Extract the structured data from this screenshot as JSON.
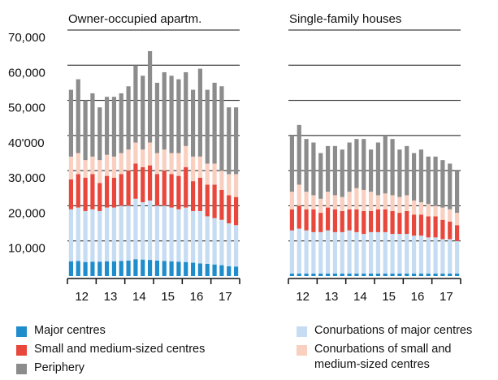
{
  "chart_data": [
    {
      "type": "stacked_bar",
      "title": "Owner-occupied apartm.",
      "categories": [
        null,
        null,
        null,
        null,
        null,
        null,
        null,
        null,
        null,
        null,
        null,
        null,
        null,
        null,
        null,
        null,
        null,
        null,
        null,
        null,
        null,
        null,
        null,
        null
      ],
      "year_labels": [
        "12",
        "13",
        "14",
        "15",
        "16",
        "17"
      ],
      "ylim": [
        0,
        70000
      ],
      "yticks": [
        {
          "value": 10000,
          "label": "10,000"
        },
        {
          "value": 20000,
          "label": "20,000"
        },
        {
          "value": 30000,
          "label": "30,000"
        },
        {
          "value": 40000,
          "label": "40'000"
        },
        {
          "value": 50000,
          "label": "50,000"
        },
        {
          "value": 60000,
          "label": "60,000"
        },
        {
          "value": 70000,
          "label": "70,000"
        }
      ],
      "grid": true,
      "series": [
        {
          "name": "Major centres",
          "color": "#1f8ccc",
          "values": [
            4200,
            4300,
            4000,
            4100,
            4100,
            4200,
            4200,
            4300,
            4400,
            4800,
            4700,
            4600,
            4400,
            4300,
            4200,
            4100,
            4000,
            3800,
            3600,
            3500,
            3300,
            3100,
            2800,
            2700
          ]
        },
        {
          "name": "Conurbations of major centres",
          "color": "#c5dcf2",
          "values": [
            14800,
            15200,
            14500,
            14900,
            14400,
            15300,
            15300,
            15700,
            15600,
            17200,
            16300,
            16900,
            15600,
            15700,
            15300,
            14900,
            15500,
            14700,
            14900,
            13500,
            13200,
            12900,
            12200,
            11800
          ]
        },
        {
          "name": "Small and medium-sized centres",
          "color": "#e8473c",
          "values": [
            8500,
            9500,
            9500,
            10000,
            8000,
            9000,
            8500,
            9000,
            10000,
            10000,
            10000,
            10000,
            9000,
            10000,
            9500,
            9500,
            11500,
            8500,
            9500,
            9000,
            9500,
            8500,
            8000,
            8000
          ]
        },
        {
          "name": "Conurbations of small and medium-sized centres",
          "color": "#f9cfc0",
          "values": [
            6500,
            6000,
            5000,
            5000,
            6500,
            6000,
            6000,
            6000,
            6000,
            6000,
            5000,
            6500,
            6000,
            6000,
            6000,
            6500,
            6000,
            7000,
            6000,
            6000,
            6000,
            5500,
            6000,
            6500
          ]
        },
        {
          "name": "Periphery",
          "color": "#8c8c8c",
          "values": [
            19000,
            21000,
            17000,
            18000,
            15000,
            16500,
            17000,
            17000,
            18000,
            22000,
            21000,
            26000,
            20000,
            22000,
            22000,
            21000,
            21000,
            19000,
            25000,
            21000,
            23000,
            24000,
            19000,
            19000
          ]
        }
      ]
    },
    {
      "type": "stacked_bar",
      "title": "Single-family houses",
      "categories": [
        null,
        null,
        null,
        null,
        null,
        null,
        null,
        null,
        null,
        null,
        null,
        null,
        null,
        null,
        null,
        null,
        null,
        null,
        null,
        null,
        null,
        null,
        null,
        null
      ],
      "year_labels": [
        "12",
        "13",
        "14",
        "15",
        "16",
        "17"
      ],
      "ylim": [
        0,
        70000
      ],
      "yticks": [
        10000,
        20000,
        30000,
        40000,
        50000,
        60000,
        70000
      ],
      "grid": true,
      "series": [
        {
          "values": [
            700,
            700,
            700,
            700,
            700,
            700,
            700,
            700,
            700,
            700,
            700,
            700,
            700,
            700,
            700,
            700,
            700,
            700,
            700,
            700,
            700,
            700,
            700,
            700
          ]
        },
        {
          "values": [
            12300,
            12800,
            12300,
            11800,
            11800,
            12300,
            11800,
            11800,
            12300,
            11800,
            11300,
            11800,
            11800,
            11800,
            11300,
            11300,
            11300,
            10800,
            10800,
            10300,
            10300,
            9800,
            9800,
            9300
          ]
        },
        {
          "values": [
            6000,
            6500,
            6000,
            6500,
            5500,
            6500,
            6500,
            6000,
            6000,
            6500,
            6500,
            6000,
            6500,
            6500,
            6500,
            6000,
            6500,
            6000,
            6000,
            6000,
            6000,
            5500,
            5000,
            4500
          ]
        },
        {
          "values": [
            5000,
            6000,
            5000,
            4000,
            4000,
            4500,
            4000,
            4000,
            5000,
            6000,
            6000,
            5500,
            4000,
            4500,
            4500,
            4500,
            4500,
            4000,
            3500,
            3500,
            3000,
            3500,
            3500,
            3500
          ]
        },
        {
          "values": [
            16000,
            17000,
            15000,
            15000,
            13000,
            13000,
            14000,
            13500,
            14000,
            14000,
            14500,
            12000,
            15000,
            16500,
            16000,
            13500,
            14000,
            13500,
            15000,
            13500,
            14000,
            13500,
            13000,
            12000
          ]
        }
      ]
    }
  ]
}
